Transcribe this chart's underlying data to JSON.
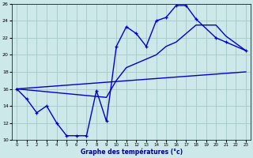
{
  "title": "Graphe des températures (°c)",
  "bg_color": "#cce8e8",
  "grid_color": "#aacccc",
  "line_color": "#0000cc",
  "xlim": [
    -0.5,
    23.5
  ],
  "ylim": [
    10,
    26
  ],
  "yticks": [
    10,
    12,
    14,
    16,
    18,
    20,
    22,
    24,
    26
  ],
  "xticks": [
    0,
    1,
    2,
    3,
    4,
    5,
    6,
    7,
    8,
    9,
    10,
    11,
    12,
    13,
    14,
    15,
    16,
    17,
    18,
    19,
    20,
    21,
    22,
    23
  ],
  "curve1_x": [
    0,
    1,
    2,
    3,
    4,
    5,
    6,
    7,
    8,
    9,
    10,
    11,
    12,
    13,
    14,
    15,
    16,
    17,
    18,
    20,
    21,
    23
  ],
  "curve1_y": [
    16.0,
    14.8,
    13.2,
    14.0,
    12.0,
    10.5,
    10.5,
    10.5,
    15.8,
    12.2,
    21.0,
    23.3,
    22.5,
    21.0,
    24.0,
    24.4,
    25.8,
    25.8,
    24.2,
    22.0,
    21.5,
    20.5
  ],
  "curve2_x": [
    0,
    9,
    10,
    11,
    12,
    13,
    14,
    15,
    16,
    17,
    18,
    20,
    21,
    23
  ],
  "curve2_y": [
    16.0,
    15.0,
    17.0,
    18.5,
    19.0,
    19.5,
    20.0,
    21.0,
    21.5,
    22.5,
    23.5,
    23.5,
    22.2,
    20.5
  ],
  "line3_x": [
    0,
    23
  ],
  "line3_y": [
    16.0,
    18.0
  ]
}
